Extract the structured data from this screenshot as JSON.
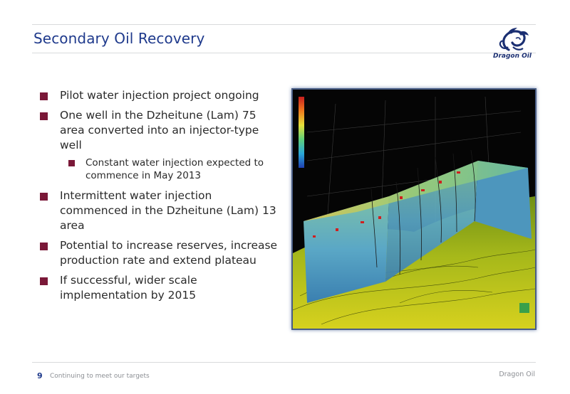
{
  "slide": {
    "title": "Secondary Oil Recovery",
    "logo_text": "Dragon Oil",
    "bullets": [
      {
        "text": "Pilot water injection project ongoing"
      },
      {
        "text": "One well in the Dzheitune (Lam) 75 area converted into an injector-type well",
        "sub": "Constant water injection expected to commence in May 2013"
      },
      {
        "text": "Intermittent water injection commenced in the Dzheitune (Lam) 13 area"
      },
      {
        "text": "Potential to increase reserves, increase production rate and extend plateau"
      },
      {
        "text": "If successful, wider scale implementation by 2015"
      }
    ]
  },
  "footer": {
    "page_number": "9",
    "section": "Continuing to meet our targets",
    "brand": "Dragon Oil"
  },
  "colors": {
    "title": "#1f3a8c",
    "bullet": "#7a1838",
    "rule": "#d9dadc"
  }
}
